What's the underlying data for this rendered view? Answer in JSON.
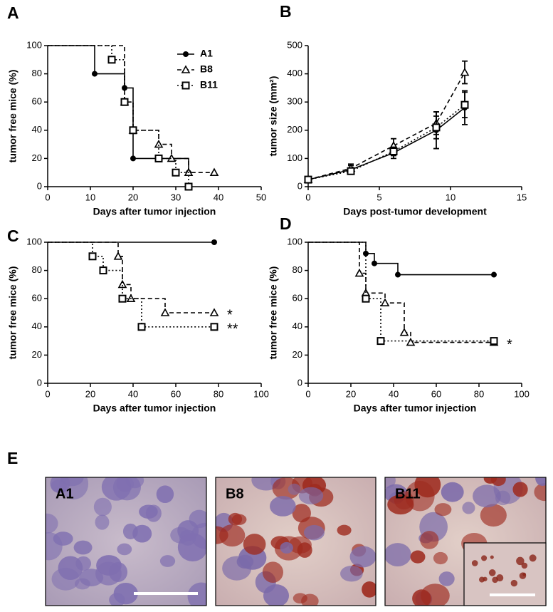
{
  "chart_data": [
    {
      "type": "step",
      "label": "A",
      "xlabel": "Days after tumor injection",
      "ylabel": "tumor free mice (%)",
      "xlim": [
        0,
        50
      ],
      "xticks": [
        0,
        10,
        20,
        30,
        40,
        50
      ],
      "ylim": [
        0,
        100
      ],
      "yticks": [
        0,
        20,
        40,
        60,
        80,
        100
      ],
      "legend": "upper right",
      "series": [
        {
          "name": "A1",
          "color": "#000000",
          "marker": "circle",
          "dash": "solid",
          "x": [
            0,
            11,
            18,
            20,
            33
          ],
          "values": [
            100,
            80,
            70,
            20,
            10
          ]
        },
        {
          "name": "B8",
          "color": "#000000",
          "marker": "triangle",
          "dash": "dashed",
          "x": [
            0,
            18,
            20,
            26,
            29,
            33,
            39
          ],
          "values": [
            100,
            60,
            40,
            30,
            20,
            10,
            10
          ]
        },
        {
          "name": "B11",
          "color": "#000000",
          "marker": "square",
          "dash": "dotted",
          "x": [
            0,
            15,
            18,
            20,
            26,
            30,
            33
          ],
          "values": [
            100,
            90,
            60,
            40,
            20,
            10,
            0
          ]
        }
      ]
    },
    {
      "type": "line",
      "label": "B",
      "xlabel": "Days post-tumor development",
      "ylabel": "tumor size (mm²)",
      "xlim": [
        0,
        15
      ],
      "xticks": [
        0,
        5,
        10,
        15
      ],
      "ylim": [
        0,
        500
      ],
      "yticks": [
        0,
        100,
        200,
        300,
        400,
        500
      ],
      "series": [
        {
          "color": "#000000",
          "marker": "circle",
          "dash": "solid",
          "x": [
            0,
            3,
            6,
            9,
            11
          ],
          "values": [
            25,
            60,
            120,
            200,
            280
          ],
          "errors": [
            5,
            15,
            20,
            65,
            60
          ]
        },
        {
          "color": "#000000",
          "marker": "triangle",
          "dash": "dashed",
          "x": [
            0,
            3,
            6,
            9,
            11
          ],
          "values": [
            25,
            65,
            145,
            225,
            405
          ],
          "errors": [
            5,
            15,
            25,
            40,
            40
          ]
        },
        {
          "color": "#000000",
          "marker": "square",
          "dash": "dotted",
          "x": [
            0,
            3,
            6,
            9,
            11
          ],
          "values": [
            25,
            55,
            125,
            210,
            290
          ],
          "errors": [
            5,
            10,
            15,
            40,
            45
          ]
        }
      ]
    },
    {
      "type": "step",
      "label": "C",
      "xlabel": "Days after tumor injection",
      "ylabel": "tumor free mice (%)",
      "xlim": [
        0,
        100
      ],
      "xticks": [
        0,
        20,
        40,
        60,
        80,
        100
      ],
      "ylim": [
        0,
        100
      ],
      "yticks": [
        0,
        20,
        40,
        60,
        80,
        100
      ],
      "series": [
        {
          "color": "#000000",
          "marker": "circle",
          "dash": "solid",
          "x": [
            0,
            78
          ],
          "values": [
            100,
            100
          ]
        },
        {
          "color": "#000000",
          "marker": "triangle",
          "dash": "dashed",
          "x": [
            0,
            33,
            35,
            39,
            55,
            78
          ],
          "values": [
            100,
            90,
            70,
            60,
            50,
            50
          ],
          "annotation": "*"
        },
        {
          "color": "#000000",
          "marker": "square",
          "dash": "dotted",
          "x": [
            0,
            21,
            26,
            35,
            44,
            78
          ],
          "values": [
            100,
            90,
            80,
            60,
            40,
            40
          ],
          "annotation": "**"
        }
      ]
    },
    {
      "type": "step",
      "label": "D",
      "xlabel": "Days after tumor injection",
      "ylabel": "tumor free mice (%)",
      "xlim": [
        0,
        100
      ],
      "xticks": [
        0,
        20,
        40,
        60,
        80,
        100
      ],
      "ylim": [
        0,
        100
      ],
      "yticks": [
        0,
        20,
        40,
        60,
        80,
        100
      ],
      "series": [
        {
          "color": "#000000",
          "marker": "circle",
          "dash": "solid",
          "x": [
            0,
            27,
            31,
            42,
            87
          ],
          "values": [
            100,
            92,
            85,
            77,
            77
          ]
        },
        {
          "color": "#000000",
          "marker": "triangle",
          "dash": "dashed",
          "x": [
            0,
            24,
            27,
            36,
            45,
            48,
            87
          ],
          "values": [
            100,
            78,
            64,
            57,
            36,
            29,
            29
          ],
          "annotation": "*"
        },
        {
          "color": "#000000",
          "marker": "square",
          "dash": "dotted",
          "x": [
            0,
            27,
            34,
            87
          ],
          "values": [
            100,
            60,
            30,
            30
          ]
        }
      ]
    }
  ],
  "panel_e": {
    "label": "E",
    "images": [
      {
        "label": "A1"
      },
      {
        "label": "B8"
      },
      {
        "label": "B11"
      }
    ]
  }
}
